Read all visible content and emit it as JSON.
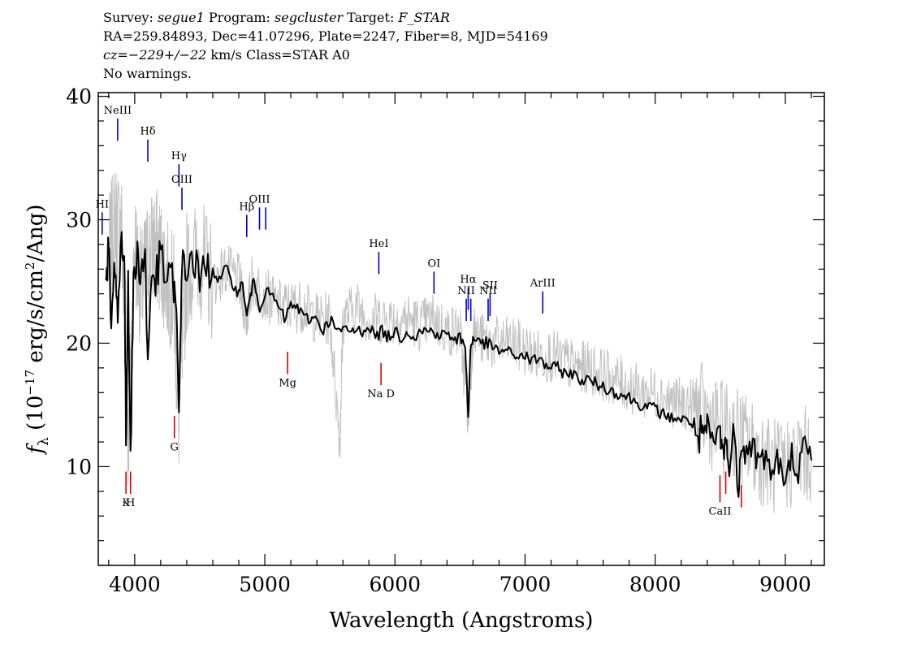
{
  "header": {
    "line1": {
      "survey_label": "Survey: ",
      "survey": "segue1",
      "program_label": " Program: ",
      "program": "segcluster",
      "target_label": " Target: ",
      "target": "F_STAR"
    },
    "line2": "RA=259.84893, Dec=41.07296, Plate=2247, Fiber=8, MJD=54169",
    "line3": {
      "cz_label": "cz=",
      "cz_value": "−229+/−22",
      "cz_rest": " km/s Class=STAR A0"
    },
    "line4": "No warnings."
  },
  "chart_data": {
    "type": "line",
    "xlabel": "Wavelength (Angstroms)",
    "ylabel_parts": [
      "f",
      "λ",
      " (10",
      "−17",
      " erg/s/cm",
      "2",
      "/Ang)"
    ],
    "xlim": [
      3720,
      9300
    ],
    "ylim": [
      2,
      40.3
    ],
    "x_ticks": [
      4000,
      5000,
      6000,
      7000,
      8000,
      9000
    ],
    "y_ticks": [
      10,
      20,
      30,
      40
    ],
    "series": [
      {
        "role": "flux",
        "color": "#c0c0c0",
        "x": [
          3800,
          3850,
          3900,
          3950,
          4000,
          4050,
          4100,
          4150,
          4200,
          4250,
          4300,
          4340,
          4400,
          4500,
          4600,
          4700,
          4800,
          4861,
          4900,
          5000,
          5100,
          5200,
          5300,
          5400,
          5500,
          5577,
          5600,
          5700,
          5800,
          5900,
          6000,
          6100,
          6200,
          6300,
          6400,
          6500,
          6563,
          6600,
          6700,
          6800,
          6900,
          7000,
          7100,
          7200,
          7300,
          7400,
          7500,
          7600,
          7700,
          7800,
          7900,
          8000,
          8100,
          8200,
          8300,
          8400,
          8500,
          8600,
          8700,
          8800,
          8900,
          9000,
          9100,
          9200
        ],
        "y": [
          27,
          30,
          29,
          12,
          28,
          24,
          27,
          28,
          27,
          25,
          24,
          14,
          26,
          27,
          25,
          26,
          25,
          22,
          25,
          24,
          23,
          23,
          23,
          22,
          22,
          12,
          22,
          23,
          22,
          22,
          22,
          22,
          21.5,
          22,
          21,
          21,
          14,
          21,
          20,
          20,
          20,
          19.5,
          19,
          19,
          18.5,
          18,
          18,
          17.5,
          17,
          16.5,
          16,
          16,
          15.5,
          15,
          15,
          14,
          13,
          13,
          12,
          11,
          10,
          10,
          11,
          11
        ]
      },
      {
        "role": "smoothed",
        "color": "#000000",
        "x": [
          3780,
          3800,
          3820,
          3850,
          3870,
          3900,
          3920,
          3933,
          3950,
          3968,
          3990,
          4020,
          4050,
          4080,
          4101,
          4130,
          4160,
          4200,
          4250,
          4300,
          4320,
          4340,
          4360,
          4400,
          4450,
          4500,
          4550,
          4600,
          4650,
          4700,
          4750,
          4800,
          4830,
          4861,
          4890,
          4920,
          4960,
          5000,
          5050,
          5100,
          5150,
          5200,
          5250,
          5300,
          5350,
          5400,
          5450,
          5500,
          5550,
          5600,
          5650,
          5700,
          5750,
          5800,
          5850,
          5900,
          5950,
          6000,
          6050,
          6100,
          6150,
          6200,
          6250,
          6300,
          6350,
          6400,
          6450,
          6500,
          6540,
          6563,
          6580,
          6600,
          6650,
          6700,
          6750,
          6800,
          6850,
          6900,
          6950,
          7000,
          7050,
          7100,
          7150,
          7200,
          7250,
          7300,
          7350,
          7400,
          7450,
          7500,
          7550,
          7600,
          7650,
          7700,
          7750,
          7800,
          7850,
          7900,
          7950,
          8000,
          8050,
          8100,
          8150,
          8200,
          8250,
          8300,
          8340,
          8350,
          8380,
          8400,
          8450,
          8500,
          8520,
          8540,
          8560,
          8600,
          8640,
          8662,
          8700,
          8750,
          8800,
          8850,
          8900,
          8950,
          9000,
          9050,
          9100,
          9150,
          9200
        ],
        "y": [
          24,
          28,
          21,
          27,
          22,
          29,
          27,
          12,
          26,
          10.5,
          25,
          27,
          26,
          27,
          18,
          26,
          25,
          27,
          25,
          25,
          22,
          14,
          26,
          26,
          27,
          25,
          26,
          26,
          25,
          26,
          25,
          24,
          25,
          22,
          24,
          25,
          23,
          24,
          24,
          23,
          22,
          23,
          23,
          22,
          22,
          22,
          21,
          22,
          21,
          21,
          21,
          21,
          21,
          21.5,
          20.5,
          21,
          20.5,
          21,
          20.5,
          21,
          20.5,
          21,
          21,
          21,
          20.5,
          21,
          20,
          20.5,
          20,
          13.8,
          19.5,
          20.5,
          20,
          20,
          19.7,
          19.3,
          19.5,
          19,
          19,
          19,
          18.5,
          18.8,
          18.3,
          18,
          18,
          17.6,
          17.6,
          17.2,
          17,
          17,
          16.7,
          16.5,
          16.2,
          16,
          15.8,
          15.6,
          15.2,
          15,
          14.8,
          14.7,
          14.3,
          14,
          14,
          13.8,
          13.7,
          13.5,
          11.5,
          13,
          12.5,
          13,
          12,
          12.8,
          11,
          12.5,
          10,
          12.5,
          8.5,
          12.5,
          11,
          12,
          10,
          11,
          9.5,
          10.5,
          8,
          11,
          10,
          11.5,
          10.5
        ]
      }
    ],
    "emission_lines": [
      {
        "label": "NeIII",
        "x": 3869,
        "y_top": 38.2,
        "y_bottom": 36.4
      },
      {
        "label": "Hδ",
        "x": 4101,
        "y_top": 36.5,
        "y_bottom": 34.7
      },
      {
        "label": "Hγ",
        "x": 4340,
        "y_top": 34.5,
        "y_bottom": 32.7
      },
      {
        "label": "OIII",
        "x": 4363,
        "y_top": 32.6,
        "y_bottom": 30.8
      },
      {
        "label": "HI",
        "x": 3750,
        "y_top": 30.6,
        "y_bottom": 28.8
      },
      {
        "label": "Hβ",
        "x": 4861,
        "y_top": 30.4,
        "y_bottom": 28.6
      },
      {
        "label": "OIII",
        "x": 4959,
        "y_top": 31.0,
        "y_bottom": 29.2
      },
      {
        "label": "",
        "x": 5007,
        "y_top": 31.0,
        "y_bottom": 29.2
      },
      {
        "label": "HeI",
        "x": 5876,
        "y_top": 27.4,
        "y_bottom": 25.6
      },
      {
        "label": "OI",
        "x": 6300,
        "y_top": 25.8,
        "y_bottom": 24.0
      },
      {
        "label": "NII",
        "x": 6548,
        "y_top": 23.6,
        "y_bottom": 21.8
      },
      {
        "label": "Hα",
        "x": 6563,
        "y_top": 24.5,
        "y_bottom": 22.7
      },
      {
        "label": "",
        "x": 6583,
        "y_top": 23.6,
        "y_bottom": 21.8
      },
      {
        "label": "NII",
        "x": 6716,
        "y_top": 23.6,
        "y_bottom": 21.8
      },
      {
        "label": "SII",
        "x": 6731,
        "y_top": 24.0,
        "y_bottom": 22.2
      },
      {
        "label": "ArIII",
        "x": 7136,
        "y_top": 24.2,
        "y_bottom": 22.4
      }
    ],
    "absorption_lines": [
      {
        "label": "Mg",
        "x": 5175,
        "y_top": 19.3,
        "y_bottom": 17.5
      },
      {
        "label": "Na D",
        "x": 5893,
        "y_top": 18.4,
        "y_bottom": 16.6
      },
      {
        "label": "G",
        "x": 4305,
        "y_top": 14.1,
        "y_bottom": 12.3
      },
      {
        "label": "K",
        "x": 3933,
        "y_top": 9.6,
        "y_bottom": 7.8
      },
      {
        "label": "H",
        "x": 3968,
        "y_top": 9.6,
        "y_bottom": 7.8
      },
      {
        "label": "CaII",
        "x": 8498,
        "y_top": 9.3,
        "y_bottom": 7.1
      },
      {
        "label": "",
        "x": 8542,
        "y_top": 9.6,
        "y_bottom": 7.8
      },
      {
        "label": "",
        "x": 8662,
        "y_top": 8.5,
        "y_bottom": 6.7
      }
    ],
    "colors": {
      "emission": "#0000cc",
      "absorption": "#dd0000"
    }
  }
}
